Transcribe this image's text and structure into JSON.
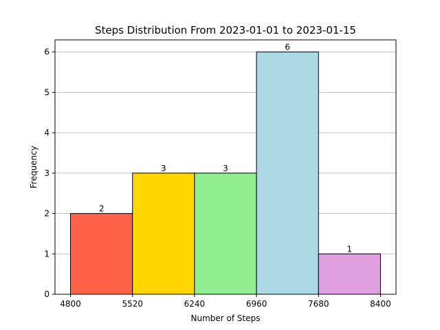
{
  "chart_data": {
    "type": "bar",
    "title": "Steps Distribution From 2023-01-01 to 2023-01-15",
    "xlabel": "Number of Steps",
    "ylabel": "Frequency",
    "bin_edges": [
      4800,
      5520,
      6240,
      6960,
      7680,
      8400
    ],
    "values": [
      2,
      3,
      3,
      6,
      1
    ],
    "data_labels": [
      "2",
      "3",
      "3",
      "6",
      "1"
    ],
    "colors": [
      "#ff6347",
      "#ffd700",
      "#90ee90",
      "#add8e6",
      "#dda0dd"
    ],
    "xticks": [
      "4800",
      "5520",
      "6240",
      "6960",
      "7680",
      "8400"
    ],
    "yticks": [
      "0",
      "1",
      "2",
      "3",
      "4",
      "5",
      "6"
    ],
    "xlim": [
      4620,
      8580
    ],
    "ylim": [
      0,
      6.3
    ],
    "grid": "y"
  }
}
